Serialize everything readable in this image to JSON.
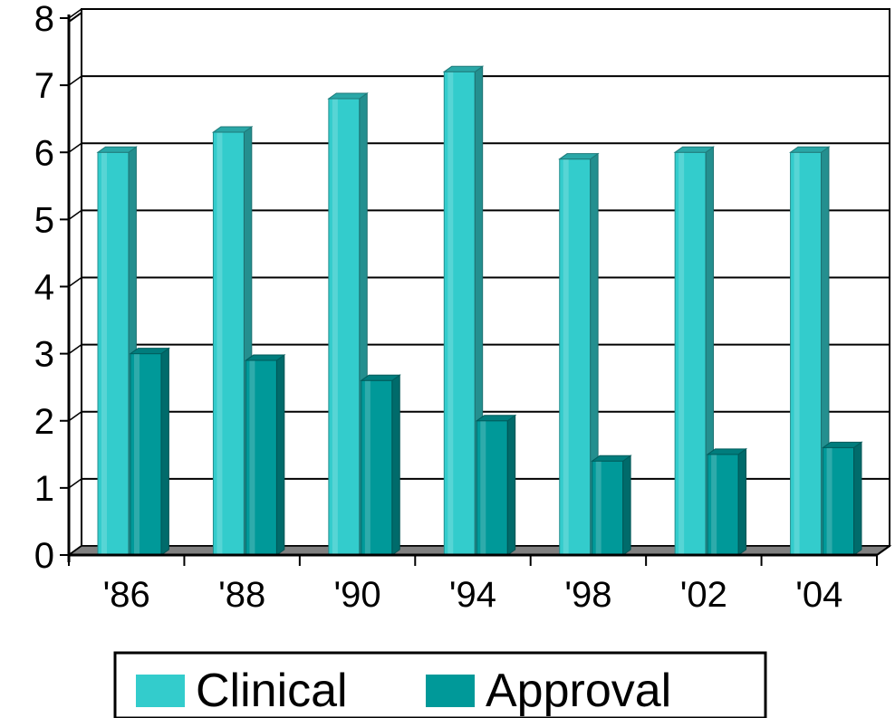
{
  "chart_data": {
    "type": "bar",
    "categories": [
      "'86",
      "'88",
      "'90",
      "'94",
      "'98",
      "'02",
      "'04"
    ],
    "series": [
      {
        "name": "Clinical",
        "values": [
          6.0,
          6.3,
          6.8,
          7.2,
          5.9,
          6.0,
          6.0
        ],
        "color": "#33CCCC"
      },
      {
        "name": "Approval",
        "values": [
          3.0,
          2.9,
          2.6,
          2.0,
          1.4,
          1.5,
          1.6
        ],
        "color": "#009999"
      }
    ],
    "y_ticks": [
      "0",
      "1",
      "2",
      "3",
      "4",
      "5",
      "6",
      "7",
      "8"
    ],
    "ylim": [
      0,
      8
    ],
    "title": "",
    "xlabel": "",
    "ylabel": "",
    "grid": true,
    "style": "3d-bar",
    "legend_position": "bottom"
  }
}
